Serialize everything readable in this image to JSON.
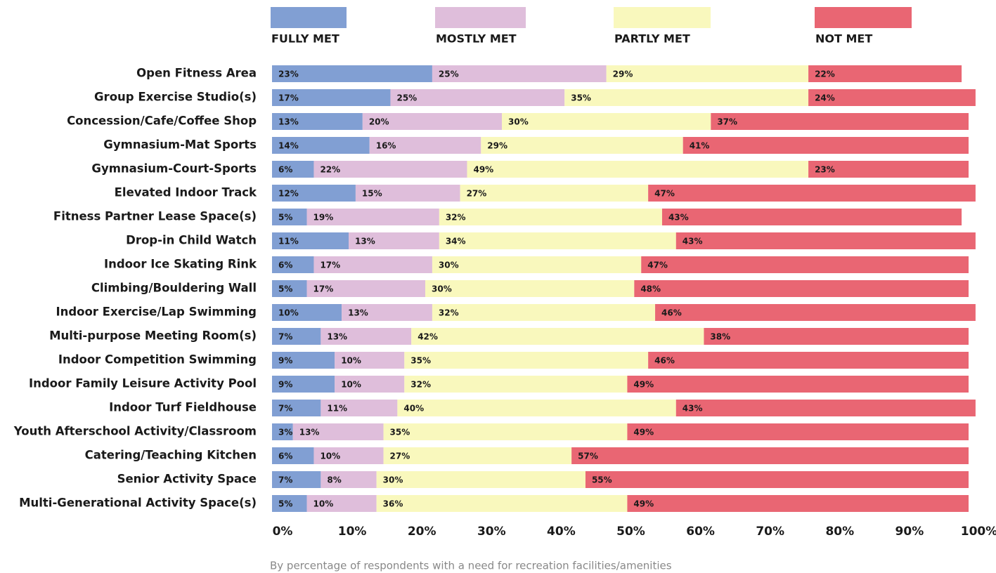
{
  "chart_data": {
    "type": "stacked_bar_horizontal",
    "caption": "By percentage of respondents with a need for recreation facilities/amenities",
    "categories": [
      "Open Fitness Area",
      "Group Exercise Studio(s)",
      "Concession/Cafe/Coffee Shop",
      "Gymnasium-Mat Sports",
      "Gymnasium-Court-Sports",
      "Elevated Indoor Track",
      "Fitness Partner Lease Space(s)",
      "Drop-in Child Watch",
      "Indoor Ice Skating Rink",
      "Climbing/Bouldering Wall",
      "Indoor Exercise/Lap Swimming",
      "Multi-purpose Meeting Room(s)",
      "Indoor Competition Swimming",
      "Indoor Family Leisure Activity Pool",
      "Indoor Turf Fieldhouse",
      "Youth Afterschool Activity/Classroom",
      "Catering/Teaching Kitchen",
      "Senior Activity Space",
      "Multi-Generational Activity Space(s)"
    ],
    "series": [
      {
        "name": "FULLY MET",
        "color": "#819fd3",
        "values": [
          23,
          17,
          13,
          14,
          6,
          12,
          5,
          11,
          6,
          5,
          10,
          7,
          9,
          9,
          7,
          3,
          6,
          7,
          5
        ],
        "value_labels": [
          "23%",
          "17%",
          "13%",
          "14%",
          "6%",
          "12%",
          "5%",
          "11%",
          "6%",
          "5%",
          "10%",
          "7%",
          "9%",
          "9%",
          "7%",
          "3%",
          "6%",
          "7%",
          "5%"
        ]
      },
      {
        "name": "MOSTLY MET",
        "color": "#dfbedb",
        "values": [
          25,
          25,
          20,
          16,
          22,
          15,
          19,
          13,
          17,
          17,
          13,
          13,
          10,
          10,
          11,
          13,
          10,
          8,
          10
        ],
        "value_labels": [
          "25%",
          "25%",
          "20%",
          "16%",
          "22%",
          "15%",
          "19%",
          "13%",
          "17%",
          "17%",
          "13%",
          "13%",
          "10%",
          "10%",
          "11%",
          "13%",
          "10%",
          "8%",
          "10%"
        ]
      },
      {
        "name": "PARTLY MET",
        "color": "#f9f8bd",
        "values": [
          29,
          35,
          30,
          29,
          49,
          27,
          32,
          34,
          30,
          30,
          32,
          42,
          35,
          32,
          40,
          35,
          27,
          30,
          36
        ],
        "value_labels": [
          "29%",
          "35%",
          "30%",
          "29%",
          "49%",
          "27%",
          "32%",
          "34%",
          "30%",
          "30%",
          "32%",
          "42%",
          "35%",
          "32%",
          "40%",
          "35%",
          "27%",
          "30%",
          "36%"
        ]
      },
      {
        "name": "NOT MET",
        "color": "#e96673",
        "values": [
          22,
          24,
          37,
          41,
          23,
          47,
          43,
          43,
          47,
          48,
          46,
          38,
          46,
          49,
          43,
          49,
          57,
          55,
          49
        ],
        "value_labels": [
          "22%",
          "24%",
          "37%",
          "41%",
          "23%",
          "47%",
          "43%",
          "43%",
          "47%",
          "48%",
          "46%",
          "38%",
          "46%",
          "49%",
          "43%",
          "49%",
          "57%",
          "55%",
          "49%"
        ]
      }
    ],
    "xlim": [
      0,
      100
    ],
    "xticks": [
      {
        "value": 0,
        "label": "0%"
      },
      {
        "value": 10,
        "label": "10%"
      },
      {
        "value": 20,
        "label": "20%"
      },
      {
        "value": 30,
        "label": "30%"
      },
      {
        "value": 40,
        "label": "40%"
      },
      {
        "value": 50,
        "label": "50%"
      },
      {
        "value": 60,
        "label": "60%"
      },
      {
        "value": 70,
        "label": "70%"
      },
      {
        "value": 80,
        "label": "80%"
      },
      {
        "value": 90,
        "label": "90%"
      },
      {
        "value": 100,
        "label": "100%"
      }
    ],
    "grid": false
  }
}
